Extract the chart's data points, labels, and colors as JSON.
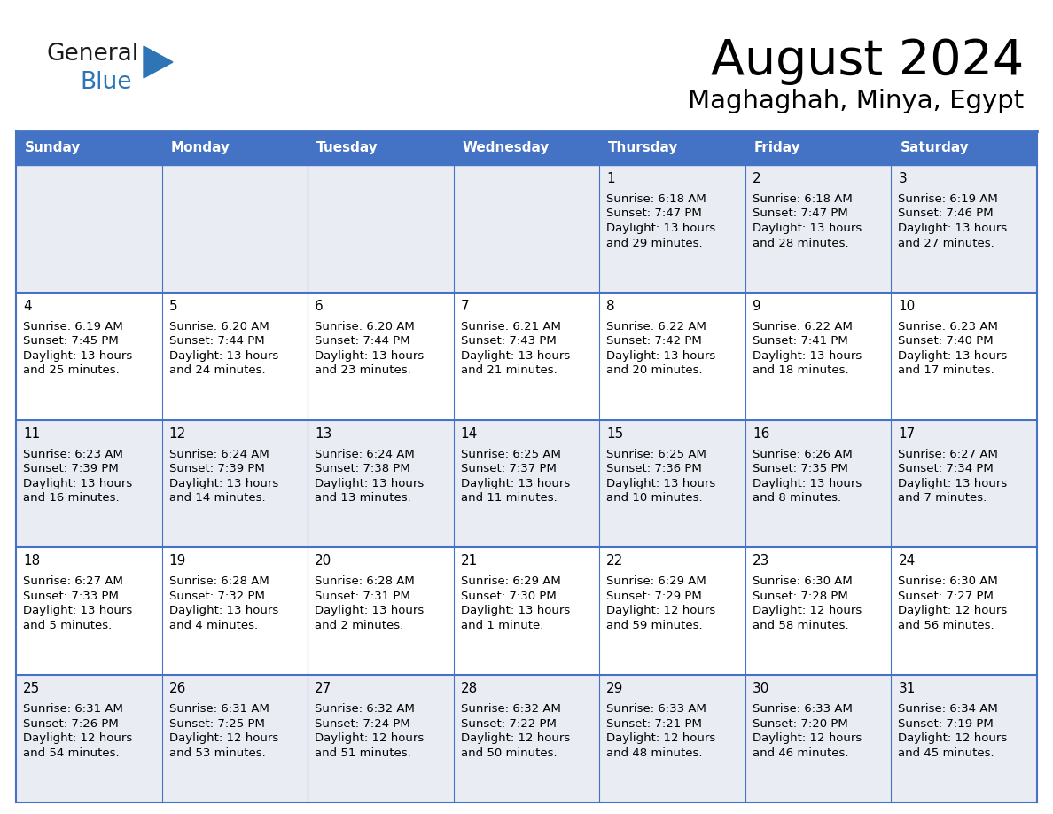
{
  "title": "August 2024",
  "subtitle": "Maghaghah, Minya, Egypt",
  "header_color": "#4472C4",
  "header_text_color": "#FFFFFF",
  "cell_bg_white": "#FFFFFF",
  "cell_bg_gray": "#EAECF4",
  "text_color": "#000000",
  "line_color": "#4472C4",
  "days_of_week": [
    "Sunday",
    "Monday",
    "Tuesday",
    "Wednesday",
    "Thursday",
    "Friday",
    "Saturday"
  ],
  "logo_general_color": "#1a1a1a",
  "logo_blue_color": "#2E75B6",
  "calendar_data": [
    [
      "",
      "",
      "",
      "",
      "1",
      "2",
      "3"
    ],
    [
      "4",
      "5",
      "6",
      "7",
      "8",
      "9",
      "10"
    ],
    [
      "11",
      "12",
      "13",
      "14",
      "15",
      "16",
      "17"
    ],
    [
      "18",
      "19",
      "20",
      "21",
      "22",
      "23",
      "24"
    ],
    [
      "25",
      "26",
      "27",
      "28",
      "29",
      "30",
      "31"
    ]
  ],
  "row_bg": [
    "#EAECF4",
    "#FFFFFF",
    "#EAECF4",
    "#FFFFFF",
    "#EAECF4"
  ],
  "cell_data": {
    "1": {
      "sunrise": "6:18 AM",
      "sunset": "7:47 PM",
      "daylight_h": "13 hours",
      "daylight_m": "29 minutes."
    },
    "2": {
      "sunrise": "6:18 AM",
      "sunset": "7:47 PM",
      "daylight_h": "13 hours",
      "daylight_m": "28 minutes."
    },
    "3": {
      "sunrise": "6:19 AM",
      "sunset": "7:46 PM",
      "daylight_h": "13 hours",
      "daylight_m": "27 minutes."
    },
    "4": {
      "sunrise": "6:19 AM",
      "sunset": "7:45 PM",
      "daylight_h": "13 hours",
      "daylight_m": "25 minutes."
    },
    "5": {
      "sunrise": "6:20 AM",
      "sunset": "7:44 PM",
      "daylight_h": "13 hours",
      "daylight_m": "24 minutes."
    },
    "6": {
      "sunrise": "6:20 AM",
      "sunset": "7:44 PM",
      "daylight_h": "13 hours",
      "daylight_m": "23 minutes."
    },
    "7": {
      "sunrise": "6:21 AM",
      "sunset": "7:43 PM",
      "daylight_h": "13 hours",
      "daylight_m": "21 minutes."
    },
    "8": {
      "sunrise": "6:22 AM",
      "sunset": "7:42 PM",
      "daylight_h": "13 hours",
      "daylight_m": "20 minutes."
    },
    "9": {
      "sunrise": "6:22 AM",
      "sunset": "7:41 PM",
      "daylight_h": "13 hours",
      "daylight_m": "18 minutes."
    },
    "10": {
      "sunrise": "6:23 AM",
      "sunset": "7:40 PM",
      "daylight_h": "13 hours",
      "daylight_m": "17 minutes."
    },
    "11": {
      "sunrise": "6:23 AM",
      "sunset": "7:39 PM",
      "daylight_h": "13 hours",
      "daylight_m": "16 minutes."
    },
    "12": {
      "sunrise": "6:24 AM",
      "sunset": "7:39 PM",
      "daylight_h": "13 hours",
      "daylight_m": "14 minutes."
    },
    "13": {
      "sunrise": "6:24 AM",
      "sunset": "7:38 PM",
      "daylight_h": "13 hours",
      "daylight_m": "13 minutes."
    },
    "14": {
      "sunrise": "6:25 AM",
      "sunset": "7:37 PM",
      "daylight_h": "13 hours",
      "daylight_m": "11 minutes."
    },
    "15": {
      "sunrise": "6:25 AM",
      "sunset": "7:36 PM",
      "daylight_h": "13 hours",
      "daylight_m": "10 minutes."
    },
    "16": {
      "sunrise": "6:26 AM",
      "sunset": "7:35 PM",
      "daylight_h": "13 hours",
      "daylight_m": "8 minutes."
    },
    "17": {
      "sunrise": "6:27 AM",
      "sunset": "7:34 PM",
      "daylight_h": "13 hours",
      "daylight_m": "7 minutes."
    },
    "18": {
      "sunrise": "6:27 AM",
      "sunset": "7:33 PM",
      "daylight_h": "13 hours",
      "daylight_m": "5 minutes."
    },
    "19": {
      "sunrise": "6:28 AM",
      "sunset": "7:32 PM",
      "daylight_h": "13 hours",
      "daylight_m": "4 minutes."
    },
    "20": {
      "sunrise": "6:28 AM",
      "sunset": "7:31 PM",
      "daylight_h": "13 hours",
      "daylight_m": "2 minutes."
    },
    "21": {
      "sunrise": "6:29 AM",
      "sunset": "7:30 PM",
      "daylight_h": "13 hours",
      "daylight_m": "1 minute."
    },
    "22": {
      "sunrise": "6:29 AM",
      "sunset": "7:29 PM",
      "daylight_h": "12 hours",
      "daylight_m": "59 minutes."
    },
    "23": {
      "sunrise": "6:30 AM",
      "sunset": "7:28 PM",
      "daylight_h": "12 hours",
      "daylight_m": "58 minutes."
    },
    "24": {
      "sunrise": "6:30 AM",
      "sunset": "7:27 PM",
      "daylight_h": "12 hours",
      "daylight_m": "56 minutes."
    },
    "25": {
      "sunrise": "6:31 AM",
      "sunset": "7:26 PM",
      "daylight_h": "12 hours",
      "daylight_m": "54 minutes."
    },
    "26": {
      "sunrise": "6:31 AM",
      "sunset": "7:25 PM",
      "daylight_h": "12 hours",
      "daylight_m": "53 minutes."
    },
    "27": {
      "sunrise": "6:32 AM",
      "sunset": "7:24 PM",
      "daylight_h": "12 hours",
      "daylight_m": "51 minutes."
    },
    "28": {
      "sunrise": "6:32 AM",
      "sunset": "7:22 PM",
      "daylight_h": "12 hours",
      "daylight_m": "50 minutes."
    },
    "29": {
      "sunrise": "6:33 AM",
      "sunset": "7:21 PM",
      "daylight_h": "12 hours",
      "daylight_m": "48 minutes."
    },
    "30": {
      "sunrise": "6:33 AM",
      "sunset": "7:20 PM",
      "daylight_h": "12 hours",
      "daylight_m": "46 minutes."
    },
    "31": {
      "sunrise": "6:34 AM",
      "sunset": "7:19 PM",
      "daylight_h": "12 hours",
      "daylight_m": "45 minutes."
    }
  }
}
